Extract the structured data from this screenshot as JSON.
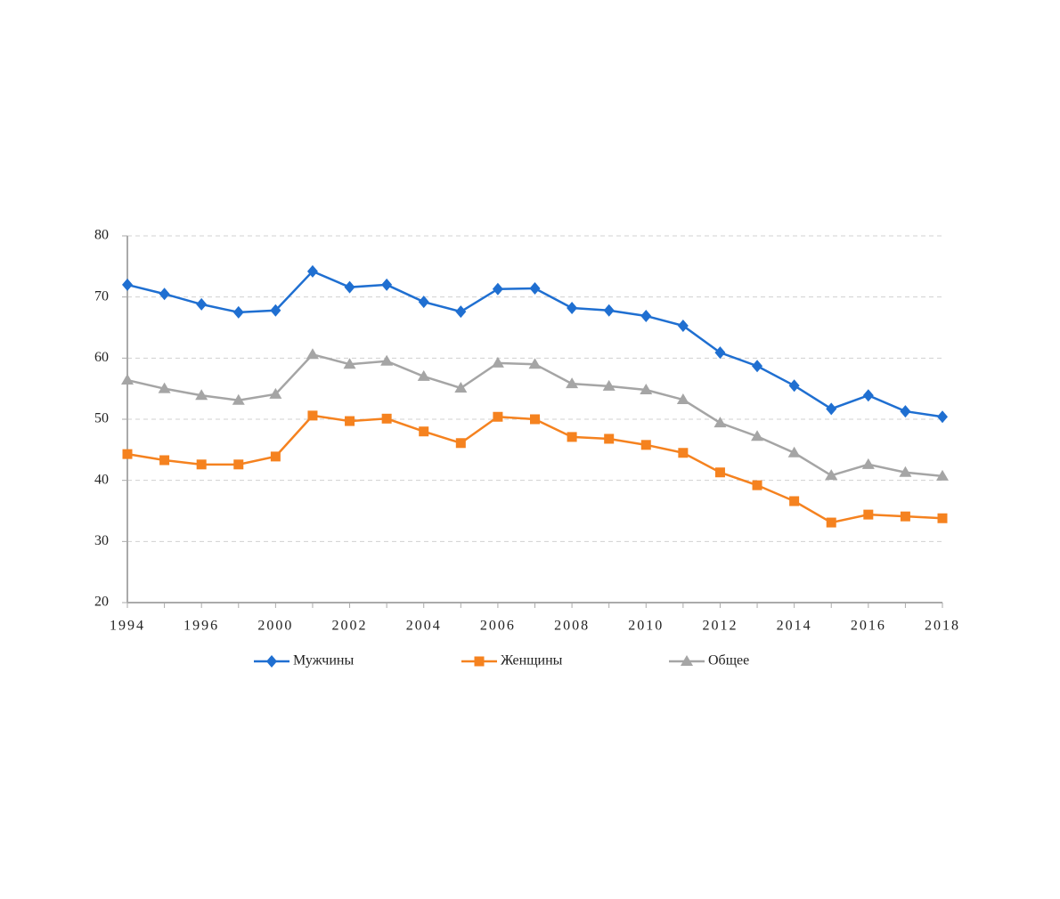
{
  "chart_data": {
    "type": "line",
    "categories": [
      "1994",
      null,
      "1996",
      null,
      "2000",
      null,
      "2002",
      null,
      "2004",
      null,
      "2006",
      null,
      "2008",
      null,
      "2010",
      null,
      "2012",
      null,
      "2014",
      null,
      "2016",
      null,
      "2018"
    ],
    "series": [
      {
        "name": "Мужчины",
        "color": "#1f6fd1",
        "marker": "diamond",
        "values": [
          72.0,
          70.5,
          68.8,
          67.5,
          67.8,
          74.2,
          71.6,
          72.0,
          69.2,
          67.6,
          71.3,
          71.4,
          68.2,
          67.8,
          66.9,
          65.3,
          60.9,
          58.7,
          55.5,
          51.7,
          53.9,
          51.3,
          50.4
        ]
      },
      {
        "name": "Женщины",
        "color": "#f5821f",
        "marker": "square",
        "values": [
          44.3,
          43.3,
          42.6,
          42.6,
          43.9,
          50.6,
          49.7,
          50.1,
          48.0,
          46.1,
          50.4,
          50.0,
          47.1,
          46.8,
          45.8,
          44.5,
          41.3,
          39.2,
          36.6,
          33.1,
          34.4,
          34.1,
          33.8
        ]
      },
      {
        "name": "Общее",
        "color": "#a5a5a5",
        "marker": "triangle",
        "values": [
          56.4,
          55.0,
          53.9,
          53.1,
          54.1,
          60.6,
          59.0,
          59.5,
          57.0,
          55.1,
          59.2,
          59.0,
          55.8,
          55.4,
          54.8,
          53.2,
          49.4,
          47.2,
          44.5,
          40.8,
          42.6,
          41.3,
          40.7
        ]
      }
    ],
    "ylim": [
      20,
      80
    ],
    "yticks": [
      20,
      30,
      40,
      50,
      60,
      70,
      80
    ],
    "grid": true,
    "legend": "bottom"
  }
}
